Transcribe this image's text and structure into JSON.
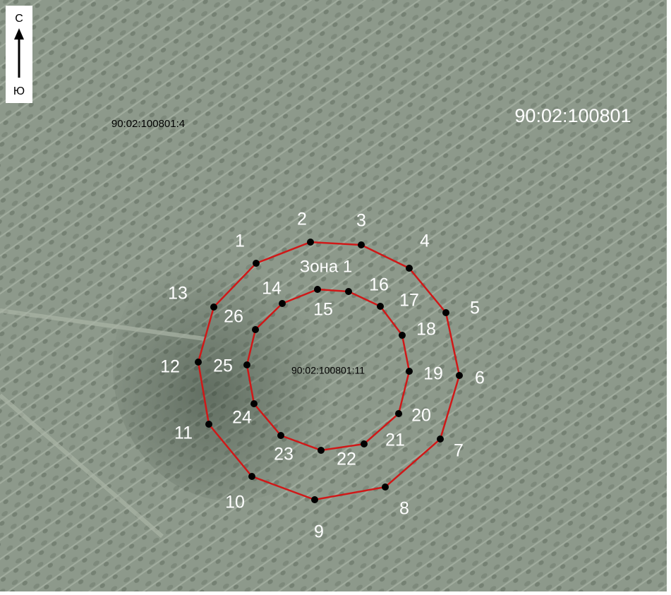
{
  "compass": {
    "north": "С",
    "south": "Ю"
  },
  "parcels": {
    "west": "90:02:100801:4",
    "quarter": "90:02:100801",
    "center": "90:02:100801:11"
  },
  "zone": "Зона 1",
  "outer_points": [
    "1",
    "2",
    "3",
    "4",
    "5",
    "6",
    "7",
    "8",
    "9",
    "10",
    "11",
    "12",
    "13"
  ],
  "inner_points": [
    "14",
    "15",
    "16",
    "17",
    "18",
    "19",
    "20",
    "21",
    "22",
    "23",
    "24",
    "25",
    "26"
  ]
}
